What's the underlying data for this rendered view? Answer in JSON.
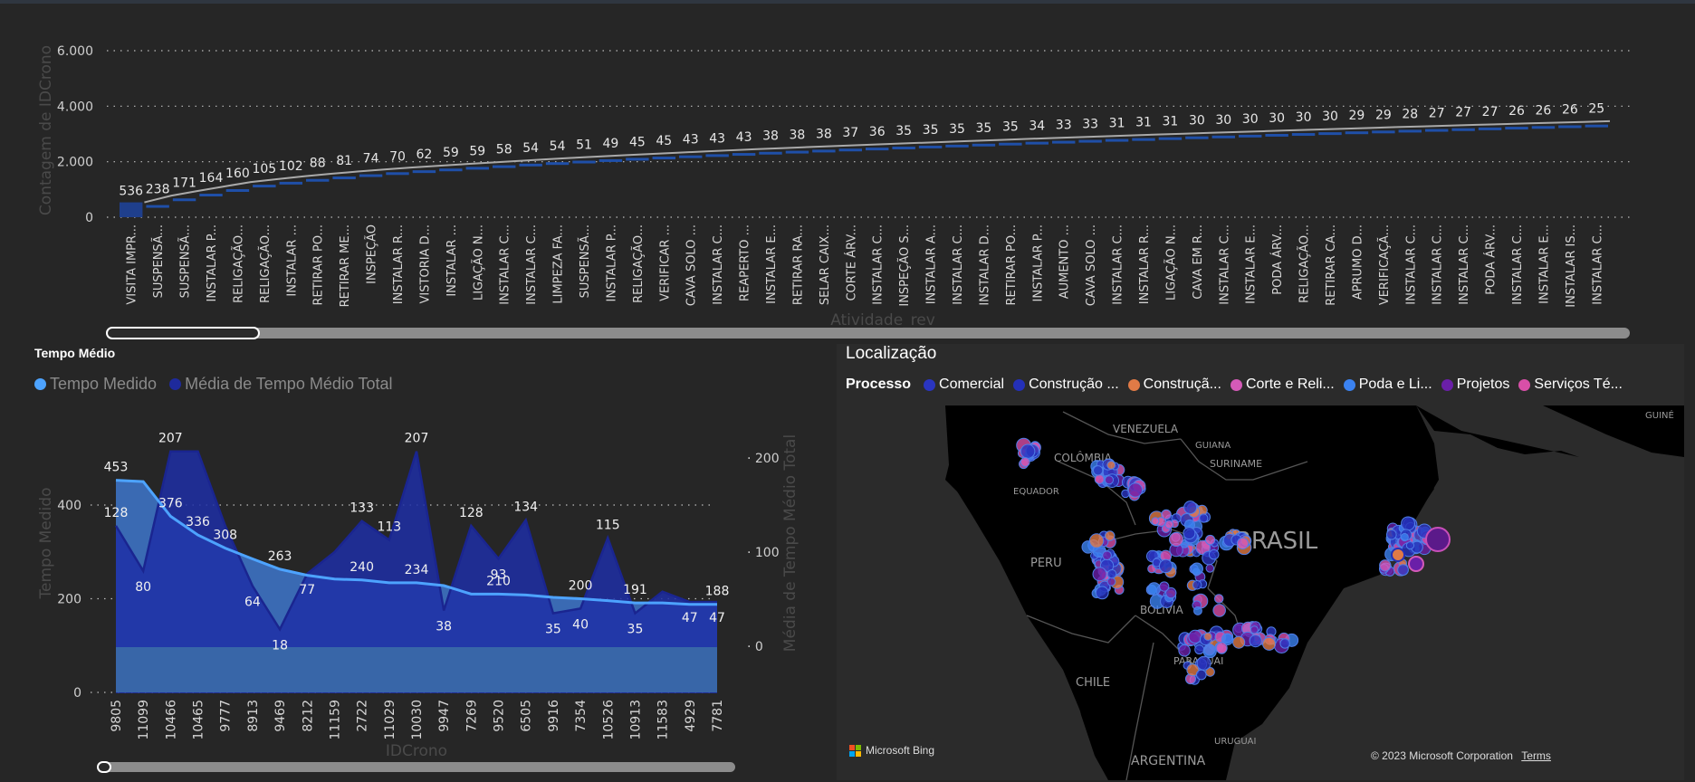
{
  "top_chart": {
    "y_axis_title": "Contagem de IDCrono",
    "x_axis_title": "Atividade_rev",
    "y_ticks": [
      "0",
      "2.000",
      "4.000",
      "6.000"
    ]
  },
  "left_chart": {
    "title": "Tempo Médio",
    "legend": [
      "Tempo Medido",
      "Média de Tempo Médio Total"
    ],
    "y_left_title": "Tempo Medido",
    "y_right_title": "Média de Tempo Médio Total",
    "x_axis_title": "IDCrono",
    "y_left_ticks": [
      "0",
      "200",
      "400"
    ],
    "y_right_ticks": [
      "0",
      "100",
      "200"
    ]
  },
  "map": {
    "title": "Localização",
    "legend_label": "Processo",
    "legend_items": [
      {
        "label": "Comercial",
        "color": "#2a35c0"
      },
      {
        "label": "Construção ...",
        "color": "#2430b8"
      },
      {
        "label": "Construçã...",
        "color": "#e07a46"
      },
      {
        "label": "Corte e Reli...",
        "color": "#d45ab8"
      },
      {
        "label": "Poda e Li...",
        "color": "#3b82f0"
      },
      {
        "label": "Projetos",
        "color": "#6a1fa8"
      },
      {
        "label": "Serviços Té...",
        "color": "#d84fa8"
      }
    ],
    "country_labels": [
      "VENEZUELA",
      "GUIANA",
      "SURINAME",
      "COLÔMBIA",
      "EQUADOR",
      "PERU",
      "BRASIL",
      "BOLÍVIA",
      "PARAGUAI",
      "CHILE",
      "URUGUAI",
      "ARGENTINA",
      "GUINÉ"
    ],
    "attribution_brand": "Microsoft Bing",
    "attribution_copyright": "© 2023 Microsoft Corporation",
    "attribution_terms": "Terms"
  },
  "chart_data": [
    {
      "type": "bar",
      "title": "",
      "xlabel": "Atividade_rev",
      "ylabel": "Contagem de IDCrono",
      "ylim": [
        0,
        6000
      ],
      "grid": true,
      "categories": [
        "VISITA IMPR...",
        "SUSPENSÃ...",
        "SUSPENSÃ...",
        "INSTALAR P...",
        "RELIGAÇÃO...",
        "RELIGAÇÃO...",
        "INSTALAR ...",
        "RETIRAR PO...",
        "RETIRAR ME...",
        "INSPEÇÃO",
        "INSTALAR R...",
        "VISTORIA D...",
        "INSTALAR ...",
        "LIGAÇÃO N...",
        "INSTALAR C...",
        "INSTALAR C...",
        "LIMPEZA FA...",
        "SUSPENSÃ...",
        "INSTALAR P...",
        "RELIGAÇÃO...",
        "VERIFICAR ...",
        "CAVA SOLO ...",
        "INSTALAR C...",
        "REAPERTO ...",
        "INSTALAR E...",
        "RETIRAR RA...",
        "SELAR CAIX...",
        "CORTE ÁRV...",
        "INSTALAR C...",
        "INSPEÇÃO S...",
        "INSTALAR A...",
        "INSTALAR C...",
        "INSTALAR D...",
        "RETIRAR PO...",
        "INSTALAR P...",
        "AUMENTO ...",
        "CAVA SOLO ...",
        "INSTALAR C...",
        "INSTALAR R...",
        "LIGAÇÃO N...",
        "CAVA EM R...",
        "INSTALAR C...",
        "INSTALAR E...",
        "PODA ÁRV...",
        "RELIGAÇÃO...",
        "RETIRAR CA...",
        "APRUMO D...",
        "VERIFICAÇÃ...",
        "INSTALAR C...",
        "INSTALAR C...",
        "INSTALAR C...",
        "PODA ÁRV...",
        "INSTALAR C...",
        "INSTALAR E...",
        "INSTALAR IS...",
        "INSTALAR C..."
      ],
      "values": [
        536,
        238,
        171,
        164,
        160,
        105,
        102,
        88,
        81,
        74,
        70,
        62,
        59,
        59,
        58,
        54,
        54,
        51,
        49,
        45,
        45,
        43,
        43,
        43,
        38,
        38,
        38,
        37,
        36,
        35,
        35,
        35,
        35,
        35,
        34,
        33,
        33,
        31,
        31,
        31,
        30,
        30,
        30,
        30,
        30,
        30,
        29,
        29,
        28,
        27,
        27,
        27,
        26,
        26,
        26,
        25
      ]
    },
    {
      "type": "area",
      "title": "Tempo Médio",
      "xlabel": "IDCrono",
      "ylabel": "Tempo Medido",
      "ylabel_right": "Média de Tempo Médio Total",
      "ylim": [
        0,
        500
      ],
      "ylim_right": [
        -50,
        230
      ],
      "categories": [
        "9805",
        "11099",
        "10466",
        "10465",
        "9777",
        "8913",
        "9469",
        "8212",
        "11159",
        "2722",
        "11029",
        "10030",
        "9947",
        "7269",
        "9520",
        "6505",
        "9916",
        "7354",
        "10526",
        "10913",
        "11583",
        "4929",
        "7781"
      ],
      "series": [
        {
          "name": "Tempo Medido",
          "axis": "left",
          "values": [
            453,
            450,
            376,
            336,
            308,
            285,
            263,
            250,
            242,
            240,
            234,
            234,
            228,
            210,
            210,
            208,
            203,
            200,
            196,
            191,
            191,
            188,
            188
          ],
          "labels": [
            "453",
            "",
            "376",
            "336",
            "308",
            "",
            "263",
            "",
            "",
            "240",
            "",
            "234",
            "",
            "",
            "210",
            "",
            "",
            "200",
            "",
            "191",
            "",
            "",
            "188"
          ]
        },
        {
          "name": "Média de Tempo Médio Total",
          "axis": "right",
          "values": [
            128,
            80,
            207,
            207,
            128,
            64,
            18,
            77,
            100,
            133,
            113,
            207,
            38,
            128,
            93,
            134,
            35,
            40,
            115,
            35,
            58,
            47,
            47
          ],
          "labels": [
            "128",
            "80",
            "207",
            "",
            "",
            "64",
            "18",
            "77",
            "",
            "133",
            "113",
            "207",
            "38",
            "128",
            "93",
            "134",
            "35",
            "40",
            "115",
            "35",
            "",
            "47",
            "47"
          ]
        }
      ]
    }
  ]
}
